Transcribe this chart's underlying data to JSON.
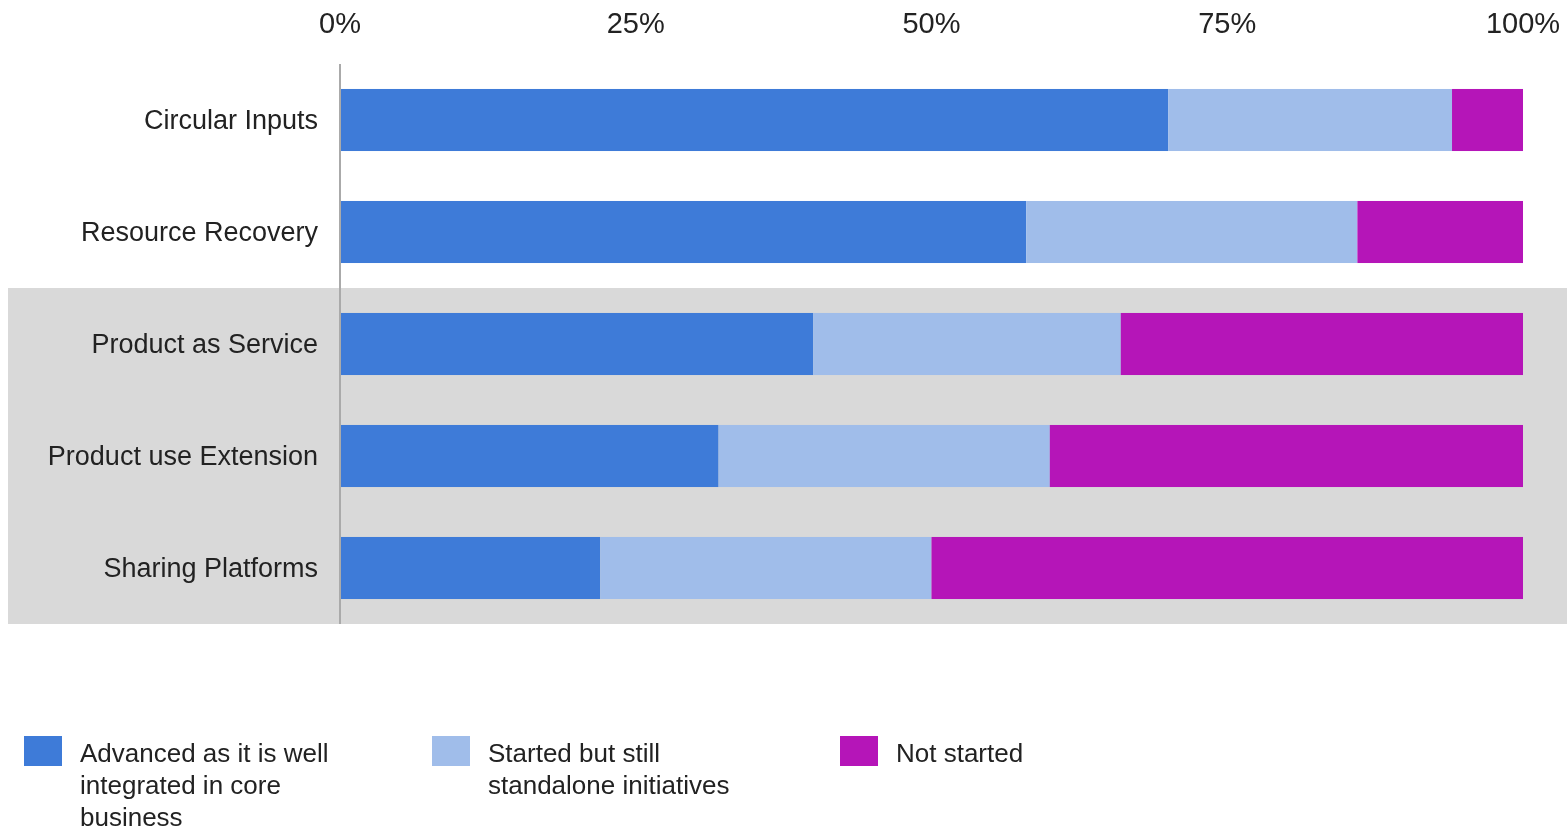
{
  "chart_data": {
    "type": "bar",
    "orientation": "horizontal",
    "stacked": true,
    "categories": [
      "Circular Inputs",
      "Resource Recovery",
      "Product as Service",
      "Product use Extension",
      "Sharing Platforms"
    ],
    "series": [
      {
        "name": "Advanced as it is well integrated in core business",
        "color": "#3e7bd8",
        "values": [
          70,
          58,
          40,
          32,
          22
        ]
      },
      {
        "name": "Started but still standalone initiatives",
        "color": "#a0bdea",
        "values": [
          24,
          28,
          26,
          28,
          28
        ]
      },
      {
        "name": "Not started",
        "color": "#b515b8",
        "values": [
          6,
          14,
          34,
          40,
          50
        ]
      }
    ],
    "xlim": [
      0,
      100
    ],
    "xticks": [
      {
        "value": 0,
        "label": "0%"
      },
      {
        "value": 25,
        "label": "25%"
      },
      {
        "value": 50,
        "label": "50%"
      },
      {
        "value": 75,
        "label": "75%"
      },
      {
        "value": 100,
        "label": "100%"
      }
    ],
    "bands": [
      {
        "axis": "y",
        "from": "Product as Service",
        "to": "Sharing Platforms",
        "color": "#d9d9d9"
      }
    ],
    "grid": false,
    "legend": "bottom left"
  }
}
